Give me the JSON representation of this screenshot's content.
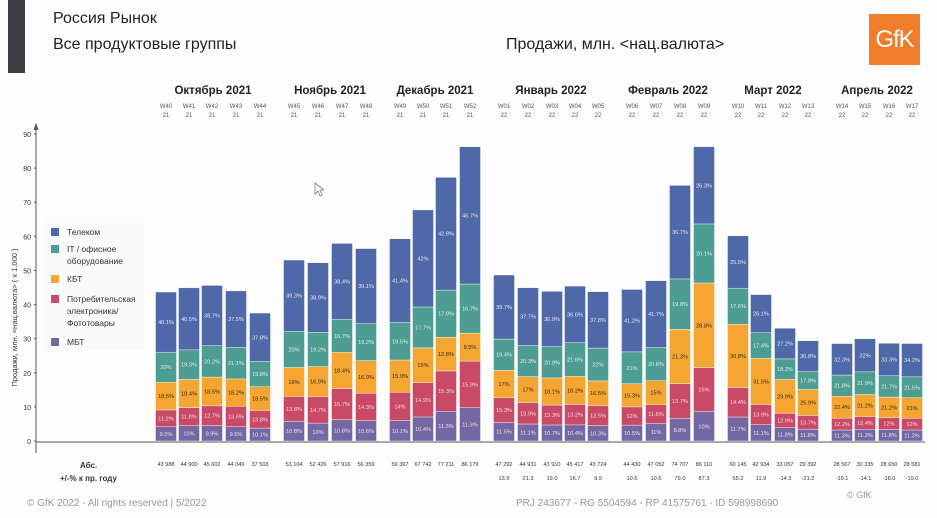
{
  "header": {
    "title": "Россия Рынок",
    "subtitle": "Все продуктовые группы",
    "metric": "Продажи, млн. <нац.валюта>",
    "logo": "GfK"
  },
  "footer": {
    "copyright": "© GfK 2022 - All rights reserved | 5/2022",
    "ids": "PRJ 243677 - RG 5504594 - RP 41575761 - ID 598998690",
    "gfk_mark": "© GfK"
  },
  "colors": {
    "telecom": "#4f68a8",
    "it": "#4e9d92",
    "kbt": "#f4a532",
    "ce": "#c94a66",
    "mbt": "#7467a3",
    "brand": "#ef7d2a"
  },
  "chart_data": {
    "type": "bar",
    "stacked": true,
    "ylabel": "Продажи, млн. <нац.валюта> ( x 1.000 )",
    "ylim": [
      0,
      90
    ],
    "yticks": [
      0,
      10,
      20,
      30,
      40,
      50,
      60,
      70,
      80,
      90
    ],
    "legend_position": "left",
    "row_labels": {
      "abs": "Абс.",
      "change": "+/-% к пр. году"
    },
    "months": [
      {
        "label": "Октябрь 2021",
        "weeks": [
          0,
          1,
          2,
          3,
          4
        ]
      },
      {
        "label": "Ноябрь 2021",
        "weeks": [
          5,
          6,
          7,
          8
        ]
      },
      {
        "label": "Декабрь 2021",
        "weeks": [
          9,
          10,
          11,
          12
        ]
      },
      {
        "label": "Январь 2022",
        "weeks": [
          13,
          14,
          15,
          16,
          17
        ]
      },
      {
        "label": "Февраль 2022",
        "weeks": [
          18,
          19,
          20,
          21
        ]
      },
      {
        "label": "Март 2022",
        "weeks": [
          22,
          23,
          24,
          25
        ]
      },
      {
        "label": "Апрель 2022",
        "weeks": [
          26,
          27,
          28,
          29
        ]
      }
    ],
    "categories": [
      "W40",
      "W41",
      "W42",
      "W43",
      "W44",
      "W45",
      "W46",
      "W47",
      "W48",
      "W49",
      "W50",
      "W51",
      "W52",
      "W01",
      "W02",
      "W03",
      "W04",
      "W05",
      "W06",
      "W07",
      "W08",
      "W09",
      "W10",
      "W11",
      "W12",
      "W13",
      "W14",
      "W15",
      "W16",
      "W17"
    ],
    "years": [
      "21",
      "21",
      "21",
      "21",
      "21",
      "21",
      "21",
      "21",
      "21",
      "21",
      "21",
      "21",
      "21",
      "22",
      "22",
      "22",
      "22",
      "22",
      "22",
      "22",
      "22",
      "22",
      "22",
      "22",
      "22",
      "22",
      "22",
      "22",
      "22",
      "22"
    ],
    "totals": [
      43.988,
      44.9,
      45.602,
      44.049,
      37.503,
      53.104,
      52.426,
      57.916,
      56.359,
      59.367,
      67.742,
      77.211,
      86.179,
      47.292,
      44.931,
      43.91,
      45.417,
      43.724,
      44.43,
      47.052,
      74.707,
      86.11,
      60.145,
      42.934,
      33.057,
      29.392,
      28.567,
      30.335,
      28.65,
      28.581
    ],
    "abs_labels": [
      "43 988",
      "44 900",
      "45 602",
      "44 049",
      "37 503",
      "53 104",
      "52 426",
      "57 916",
      "56 359",
      "59 367",
      "67 742",
      "77 211",
      "86 179",
      "47 292",
      "44 931",
      "43 910",
      "45 417",
      "43 724",
      "44 430",
      "47 052",
      "74 707",
      "86 110",
      "60 145",
      "42 934",
      "33 057",
      "29 392",
      "28 567",
      "30 335",
      "28 650",
      "28 581"
    ],
    "change_labels": [
      "",
      "",
      "",
      "",
      "",
      "",
      "",
      "",
      "",
      "",
      "",
      "",
      "",
      "13.9",
      "21.3",
      "19.0",
      "16.7",
      "9.9",
      "10.6",
      "10.6",
      "79.0",
      "87.3",
      "55.2",
      "11.9",
      "-14.3",
      "-21.2",
      "-19.1",
      "-14.1",
      "-18.0",
      "-19.0"
    ],
    "series": [
      {
        "name": "МБТ",
        "key": "mbt",
        "values": [
          "9.5%",
          "10%",
          "9.9%",
          "9.5%",
          "10.1%",
          "10.8%",
          "10%",
          "10.8%",
          "10.6%",
          "10.1%",
          "10.4%",
          "11.3%",
          "11.3%",
          "11.5%",
          "11.1%",
          "10.7%",
          "10.4%",
          "10.3%",
          "10.5%",
          "11%",
          "8.8%",
          "10%",
          "11.7%",
          "11.1%",
          "11.8%",
          "11.8%",
          "11.3%",
          "11.3%",
          "11.8%",
          "11.3%"
        ]
      },
      {
        "name": "Потребительская электроника/ Фототовары",
        "key": "ce",
        "values": [
          "11.2%",
          "11.8%",
          "12.7%",
          "13.6%",
          "13.8%",
          "13.8%",
          "14.7%",
          "15.7%",
          "14.3%",
          "14%",
          "14.9%",
          "15.3%",
          "15.9%",
          "15.3%",
          "13.9%",
          "13.3%",
          "13.2%",
          "13.5%",
          "12%",
          "11.6%",
          "13.7%",
          "15%",
          "14.4%",
          "13.9%",
          "12.9%",
          "13.7%",
          "12.2%",
          "12.4%",
          "12%",
          "12%"
        ]
      },
      {
        "name": "КБТ",
        "key": "kbt",
        "values": [
          "18.5%",
          "18.4%",
          "18.5%",
          "18.2%",
          "18.5%",
          "16%",
          "16.9%",
          "18.4%",
          "16.9%",
          "15.9%",
          "15%",
          "12.8%",
          "9.5%",
          "17%",
          "17%",
          "18.1%",
          "18.2%",
          "16.5%",
          "15.3%",
          "15%",
          "21.3%",
          "28.8%",
          "30.8%",
          "31.5%",
          "29.9%",
          "25.9%",
          "22.4%",
          "21.2%",
          "21.2%",
          "21%"
        ]
      },
      {
        "name": "IT / офисное оборудование",
        "key": "it",
        "values": [
          "20%",
          "19.3%",
          "20.2%",
          "21.1%",
          "19.8%",
          "20%",
          "19.2%",
          "16.7%",
          "19.2%",
          "18.5%",
          "17.7%",
          "17.9%",
          "16.7%",
          "19.4%",
          "20.3%",
          "20.9%",
          "21.6%",
          "22%",
          "21%",
          "20.6%",
          "19.8%",
          "20.1%",
          "17.6%",
          "17.4%",
          "18.2%",
          "17.8%",
          "21.8%",
          "21.9%",
          "21.7%",
          "21.5%"
        ]
      },
      {
        "name": "Телеком",
        "key": "telecom",
        "values": [
          "40.1%",
          "40.5%",
          "38.7%",
          "37.5%",
          "37.8%",
          "39.3%",
          "38.9%",
          "38.4%",
          "39.1%",
          "41.4%",
          "42%",
          "42.8%",
          "46.7%",
          "39.7%",
          "37.7%",
          "36.9%",
          "36.6%",
          "37.8%",
          "41.2%",
          "41.7%",
          "36.7%",
          "26.3%",
          "25.5%",
          "26.1%",
          "27.2%",
          "30.8%",
          "32.3%",
          "32%",
          "33.3%",
          "34.2%"
        ]
      }
    ],
    "legend": [
      {
        "key": "telecom",
        "label": "Телеком"
      },
      {
        "key": "it",
        "label": "IT / офисное оборудование"
      },
      {
        "key": "kbt",
        "label": "КБТ"
      },
      {
        "key": "ce",
        "label": "Потребительская электроника/ Фототовары"
      },
      {
        "key": "mbt",
        "label": "МБТ"
      }
    ]
  }
}
